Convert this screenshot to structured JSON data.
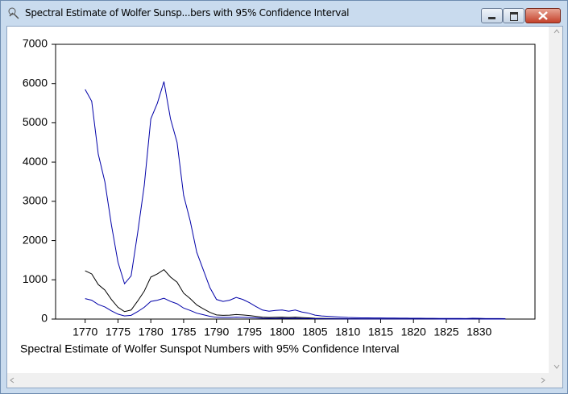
{
  "window_title": "Spectral Estimate of Wolfer Sunsp...bers with 95% Confidence Interval",
  "chart_data": {
    "type": "line",
    "title": "Spectral Estimate of Wolfer Sunspot Numbers with 95% Confidence Interval",
    "x": [
      1770,
      1771,
      1772,
      1773,
      1774,
      1775,
      1776,
      1777,
      1778,
      1779,
      1780,
      1781,
      1782,
      1783,
      1784,
      1785,
      1786,
      1787,
      1788,
      1789,
      1790,
      1791,
      1792,
      1793,
      1794,
      1795,
      1796,
      1797,
      1798,
      1799,
      1800,
      1801,
      1802,
      1803,
      1804,
      1805,
      1806,
      1807,
      1808,
      1809,
      1810,
      1811,
      1812,
      1813,
      1814,
      1815,
      1816,
      1817,
      1818,
      1819,
      1820,
      1821,
      1822,
      1823,
      1824,
      1825,
      1826,
      1827,
      1828,
      1829,
      1830,
      1831,
      1832,
      1833,
      1834
    ],
    "series": [
      {
        "color": "#0000a8",
        "values": [
          5850,
          5550,
          4200,
          3500,
          2400,
          1450,
          900,
          1100,
          2200,
          3400,
          5100,
          5500,
          6050,
          5100,
          4500,
          3150,
          2500,
          1700,
          1250,
          800,
          500,
          450,
          480,
          550,
          500,
          420,
          320,
          230,
          200,
          220,
          230,
          200,
          230,
          180,
          150,
          100,
          80,
          70,
          60,
          50,
          40,
          35,
          30,
          30,
          28,
          28,
          26,
          25,
          24,
          22,
          20,
          20,
          18,
          18,
          16,
          16,
          15,
          15,
          14,
          20,
          18,
          14,
          12,
          12,
          10
        ]
      },
      {
        "color": "#000000",
        "values": [
          1230,
          1150,
          880,
          740,
          500,
          300,
          190,
          230,
          460,
          710,
          1070,
          1150,
          1260,
          1070,
          940,
          660,
          520,
          360,
          260,
          170,
          105,
          95,
          100,
          115,
          105,
          90,
          70,
          50,
          40,
          45,
          48,
          42,
          48,
          38,
          30,
          20,
          17,
          15,
          12,
          10,
          8,
          7,
          6,
          6,
          6,
          6,
          5,
          5,
          5,
          5,
          4,
          4,
          4,
          4,
          3,
          3,
          3,
          3,
          3,
          4,
          4,
          3,
          3,
          3,
          2
        ]
      },
      {
        "color": "#0000a8",
        "values": [
          520,
          480,
          370,
          310,
          210,
          125,
          80,
          95,
          190,
          300,
          450,
          480,
          530,
          450,
          390,
          280,
          220,
          150,
          110,
          70,
          45,
          40,
          42,
          48,
          44,
          38,
          30,
          21,
          17,
          19,
          20,
          18,
          20,
          16,
          13,
          8,
          7,
          6,
          5,
          4,
          3,
          3,
          3,
          3,
          2,
          2,
          2,
          2,
          2,
          2,
          2,
          2,
          2,
          2,
          1,
          1,
          1,
          1,
          1,
          2,
          2,
          1,
          1,
          1,
          1
        ]
      }
    ],
    "xlim": [
      1765.5,
      1838.5
    ],
    "ylim": [
      0,
      7000
    ],
    "xticks": [
      1770,
      1775,
      1780,
      1785,
      1790,
      1795,
      1800,
      1805,
      1810,
      1815,
      1820,
      1825,
      1830
    ],
    "yticks": [
      0,
      1000,
      2000,
      3000,
      4000,
      5000,
      6000,
      7000
    ]
  }
}
